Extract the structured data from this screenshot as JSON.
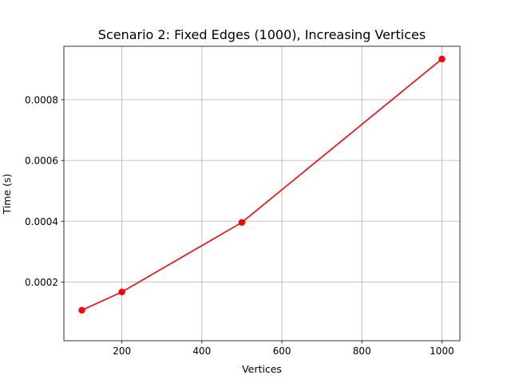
{
  "chart_data": {
    "type": "line",
    "title": "Scenario 2: Fixed Edges (1000), Increasing Vertices",
    "xlabel": "Vertices",
    "ylabel": "Time (s)",
    "xlim": [
      55,
      1045
    ],
    "ylim": [
      6.6e-06,
      0.000976
    ],
    "x_ticks": [
      200,
      400,
      600,
      800,
      1000
    ],
    "x_tick_labels": [
      "200",
      "400",
      "600",
      "800",
      "1000"
    ],
    "y_ticks": [
      0.0002,
      0.0004,
      0.0006,
      0.0008
    ],
    "y_tick_labels": [
      "0.0002",
      "0.0004",
      "0.0006",
      "0.0008"
    ],
    "grid": true,
    "series": [
      {
        "color": "#ff0000",
        "marker": "circle",
        "x": [
          100,
          200,
          500,
          1000
        ],
        "y": [
          0.000107,
          0.000167,
          0.000396,
          0.000934
        ]
      }
    ]
  }
}
